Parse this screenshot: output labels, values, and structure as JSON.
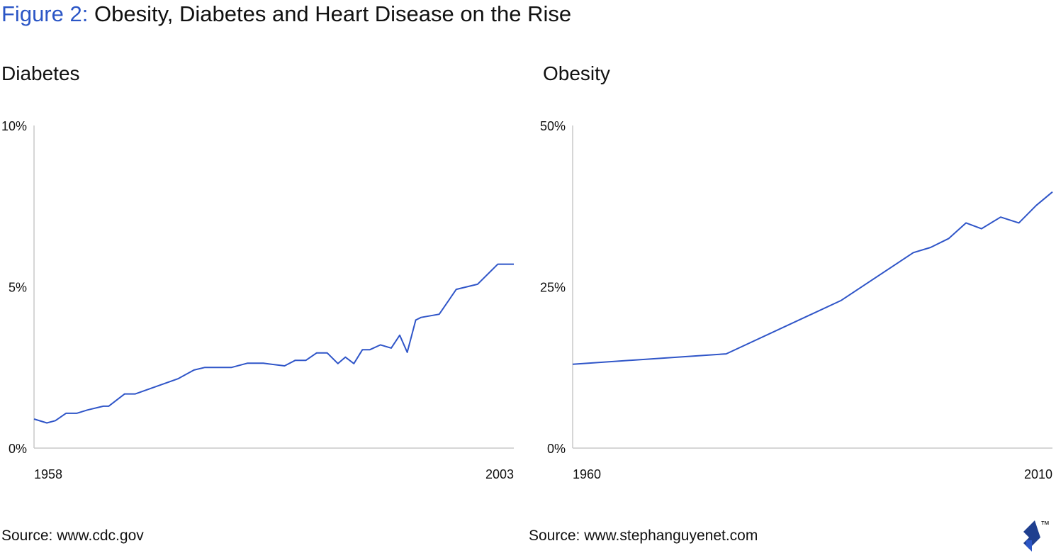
{
  "figure": {
    "prefix": "Figure 2:",
    "title": "Obesity, Diabetes and Heart Disease on the Rise"
  },
  "colors": {
    "accent": "#2b56c6",
    "line": "#2f55c8",
    "axis": "#c9c9c9",
    "text": "#111111"
  },
  "logo": {
    "icon": "toptal-logo-icon",
    "mark": "™"
  },
  "chart_data": [
    {
      "type": "line",
      "title": "Diabetes",
      "source": "Source: www.cdc.gov",
      "xlim": [
        1958,
        2003
      ],
      "ylim": [
        0,
        10
      ],
      "x_tick_labels": [
        "1958",
        "2003"
      ],
      "y_tick_labels": [
        {
          "value": 0,
          "label": "0%"
        },
        {
          "value": 5,
          "label": "5%"
        },
        {
          "value": 10,
          "label": "10%"
        }
      ],
      "grid": false,
      "series": [
        {
          "x": [
            1958,
            1959.2,
            1960,
            1961,
            1962,
            1963,
            1964.5,
            1965,
            1966.5,
            1967.5,
            1971.5,
            1973,
            1974,
            1975.5,
            1976.5,
            1978,
            1979.5,
            1981.5,
            1982.5,
            1983.5,
            1984.5,
            1985.5,
            1986.5,
            1987.2,
            1988,
            1988.8,
            1989.5,
            1990.5,
            1991.5,
            1992.3,
            1993,
            1993.8,
            1994.3,
            1996,
            1997.6,
            1999.6,
            2001.5,
            2003
          ],
          "values": [
            0.9,
            0.78,
            0.85,
            1.08,
            1.08,
            1.18,
            1.3,
            1.3,
            1.68,
            1.68,
            2.15,
            2.42,
            2.5,
            2.5,
            2.5,
            2.63,
            2.63,
            2.55,
            2.72,
            2.72,
            2.95,
            2.95,
            2.62,
            2.82,
            2.62,
            3.05,
            3.05,
            3.2,
            3.1,
            3.5,
            2.97,
            3.97,
            4.05,
            4.15,
            4.92,
            5.08,
            5.7,
            5.7
          ]
        }
      ]
    },
    {
      "type": "line",
      "title": "Obesity",
      "source": "Source: www.stephanguyenet.com",
      "xlim": [
        1960,
        2010
      ],
      "ylim": [
        0,
        50
      ],
      "x_tick_labels": [
        "1960",
        "2010"
      ],
      "y_tick_labels": [
        {
          "value": 0,
          "label": "0%"
        },
        {
          "value": 25,
          "label": "25%"
        },
        {
          "value": 50,
          "label": "50%"
        }
      ],
      "grid": false,
      "series": [
        {
          "x": [
            1960,
            1976,
            1988,
            1995.5,
            1997.3,
            1999.2,
            2001,
            2002.6,
            2004.6,
            2006.5,
            2008.3,
            2010
          ],
          "values": [
            13.0,
            14.6,
            22.9,
            30.3,
            31.1,
            32.5,
            34.9,
            34.0,
            35.8,
            34.9,
            37.6,
            39.7
          ]
        }
      ]
    }
  ]
}
